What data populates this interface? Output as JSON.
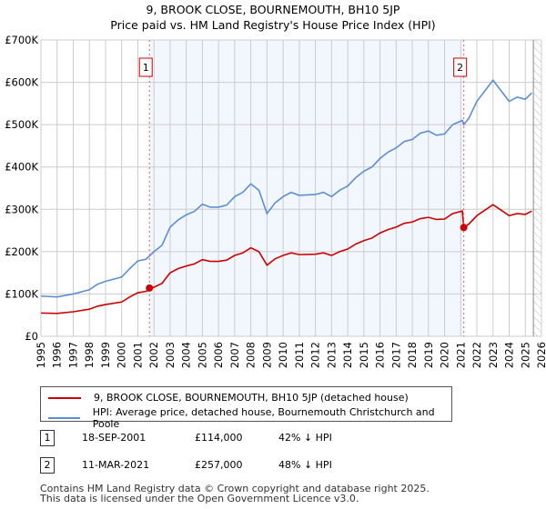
{
  "title": "9, BROOK CLOSE, BOURNEMOUTH, BH10 5JP",
  "subtitle": "Price paid vs. HM Land Registry's House Price Index (HPI)",
  "chart_data": {
    "type": "line",
    "title": "9, BROOK CLOSE, BOURNEMOUTH, BH10 5JP",
    "subtitle": "Price paid vs. HM Land Registry's House Price Index (HPI)",
    "xlim": [
      1995,
      2026
    ],
    "ylim": [
      0,
      700000
    ],
    "grid": true,
    "xticks": [
      1995,
      1996,
      1997,
      1998,
      1999,
      2000,
      2001,
      2002,
      2003,
      2004,
      2005,
      2006,
      2007,
      2008,
      2009,
      2010,
      2011,
      2012,
      2013,
      2014,
      2015,
      2016,
      2017,
      2018,
      2019,
      2020,
      2021,
      2022,
      2023,
      2024,
      2025,
      2026
    ],
    "yticks": [
      0,
      100000,
      200000,
      300000,
      400000,
      500000,
      600000,
      700000
    ],
    "ytick_labels": [
      "£0",
      "£100K",
      "£200K",
      "£300K",
      "£400K",
      "£500K",
      "£600K",
      "£700K"
    ],
    "shaded_range": [
      2001.72,
      2021.19
    ],
    "hatched_from": 2025.5,
    "series": [
      {
        "name": "HPI: Average price, detached house, Bournemouth Christchurch and Poole",
        "color": "#5b8fd4",
        "x": [
          1995,
          1996,
          1997,
          1998,
          1998.5,
          1999,
          2000,
          2000.5,
          2001,
          2001.5,
          2002,
          2002.5,
          2003,
          2003.5,
          2004,
          2004.5,
          2005,
          2005.5,
          2006,
          2006.5,
          2007,
          2007.5,
          2008,
          2008.5,
          2009,
          2009.5,
          2010,
          2010.5,
          2011,
          2012,
          2012.5,
          2013,
          2013.5,
          2014,
          2014.5,
          2015,
          2015.5,
          2016,
          2016.5,
          2017,
          2017.5,
          2018,
          2018.5,
          2019,
          2019.5,
          2020,
          2020.5,
          2021.1,
          2021.19,
          2021.5,
          2022,
          2022.5,
          2023,
          2023.5,
          2024,
          2024.5,
          2025,
          2025.4
        ],
        "y": [
          95,
          93,
          100,
          110,
          123,
          130,
          140,
          160,
          178,
          182,
          200,
          215,
          258,
          275,
          287,
          295,
          312,
          305,
          305,
          310,
          330,
          340,
          360,
          345,
          290,
          315,
          330,
          340,
          333,
          335,
          340,
          330,
          345,
          355,
          375,
          390,
          400,
          420,
          435,
          445,
          460,
          465,
          480,
          485,
          475,
          478,
          500,
          510,
          500,
          515,
          555,
          580,
          605,
          580,
          555,
          565,
          560,
          575
        ],
        "y_unit": "thousands GBP"
      },
      {
        "name": "9, BROOK CLOSE, BOURNEMOUTH, BH10 5JP (detached house)",
        "color": "#cc0000",
        "x": [
          1995,
          1996,
          1997,
          1998,
          1998.5,
          1999,
          2000,
          2000.5,
          2001,
          2001.5,
          2002,
          2002.5,
          2003,
          2003.5,
          2004,
          2004.5,
          2005,
          2005.5,
          2006,
          2006.5,
          2007,
          2007.5,
          2008,
          2008.5,
          2009,
          2009.5,
          2010,
          2010.5,
          2011,
          2012,
          2012.5,
          2013,
          2013.5,
          2014,
          2014.5,
          2015,
          2015.5,
          2016,
          2016.5,
          2017,
          2017.5,
          2018,
          2018.5,
          2019,
          2019.5,
          2020,
          2020.5,
          2021.1,
          2021.19,
          2021.5,
          2022,
          2022.5,
          2023,
          2023.5,
          2024,
          2024.5,
          2025,
          2025.4
        ],
        "y": [
          55,
          54,
          58,
          64,
          71,
          75,
          81,
          93,
          103,
          106,
          116,
          125,
          150,
          160,
          166,
          171,
          181,
          177,
          177,
          180,
          191,
          197,
          209,
          200,
          168,
          183,
          191,
          197,
          193,
          194,
          197,
          191,
          200,
          206,
          218,
          226,
          232,
          244,
          252,
          258,
          267,
          270,
          278,
          281,
          276,
          277,
          290,
          296,
          257,
          265,
          285,
          298,
          311,
          298,
          285,
          290,
          288,
          296
        ],
        "y_unit": "thousands GBP"
      }
    ],
    "sales": [
      {
        "label": "1",
        "x": 2001.72,
        "y": 114000
      },
      {
        "label": "2",
        "x": 2021.19,
        "y": 257000
      }
    ]
  },
  "legend": {
    "items": [
      {
        "label": "9, BROOK CLOSE, BOURNEMOUTH, BH10 5JP (detached house)",
        "color": "#cc0000"
      },
      {
        "label": "HPI: Average price, detached house, Bournemouth Christchurch and Poole",
        "color": "#5b8fd4"
      }
    ]
  },
  "transactions": [
    {
      "num": "1",
      "date": "18-SEP-2001",
      "price": "£114,000",
      "hpi": "42% ↓ HPI"
    },
    {
      "num": "2",
      "date": "11-MAR-2021",
      "price": "£257,000",
      "hpi": "48% ↓ HPI"
    }
  ],
  "footer": {
    "line1": "Contains HM Land Registry data © Crown copyright and database right 2025.",
    "line2": "This data is licensed under the Open Government Licence v3.0."
  }
}
